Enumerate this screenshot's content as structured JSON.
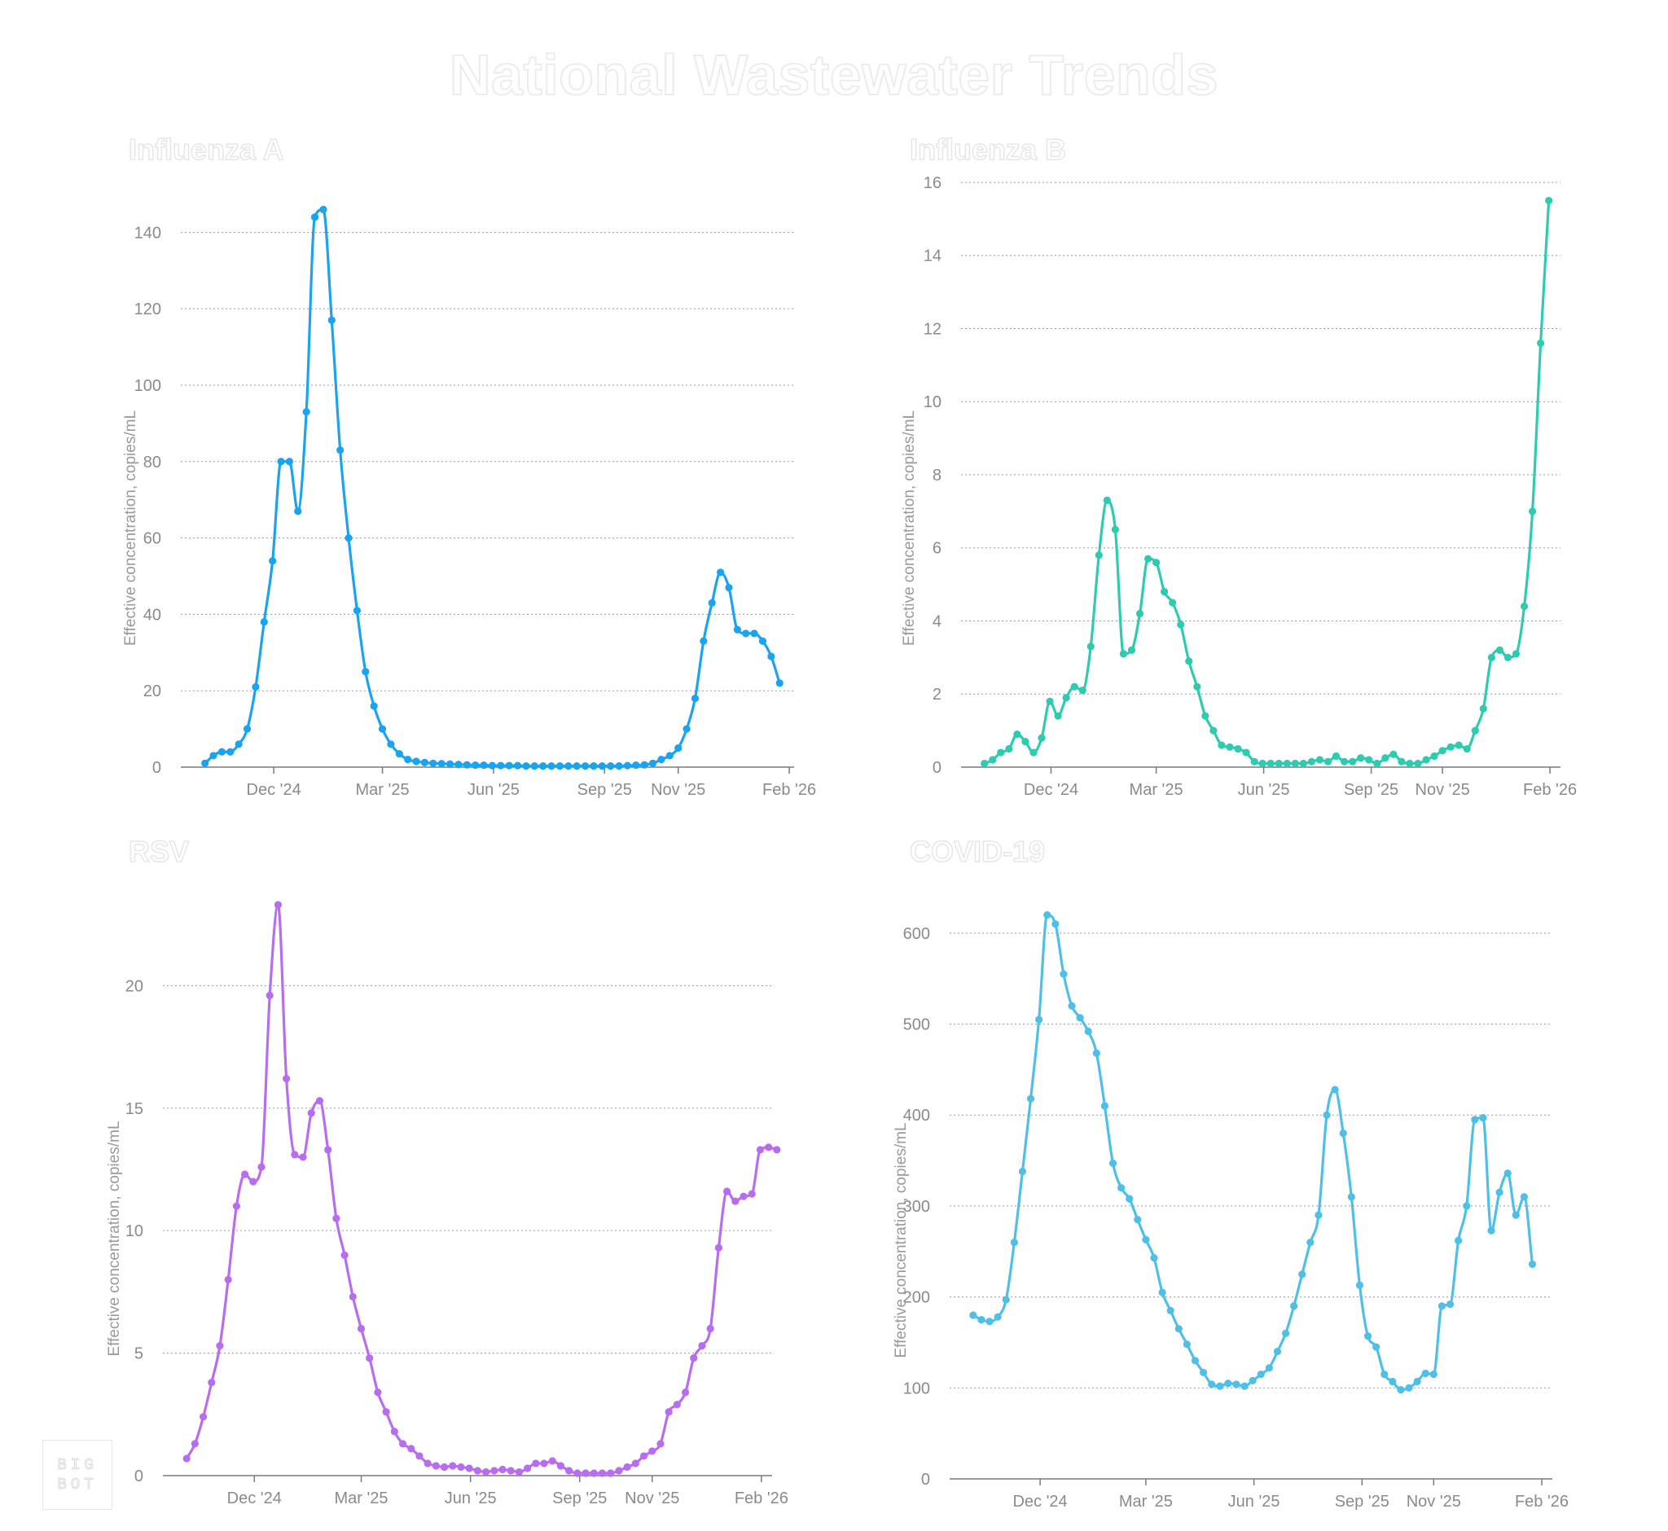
{
  "title": "National Wastewater Trends",
  "logo": {
    "line1": "BIG",
    "line2": "BOT"
  },
  "chart_data": [
    {
      "type": "line",
      "title": "Influenza A",
      "ylabel": "Effective concentration, copies/mL",
      "xlabel": "",
      "color": "#1aa3ee",
      "ylim": [
        0,
        155
      ],
      "yticks": [
        0,
        20,
        40,
        60,
        80,
        100,
        120,
        140
      ],
      "xlim": [
        "2024-09-15",
        "2026-02-05"
      ],
      "xticks": [
        {
          "date": "2024-12-01",
          "label": "Dec '24"
        },
        {
          "date": "2025-03-01",
          "label": "Mar '25"
        },
        {
          "date": "2025-06-01",
          "label": "Jun '25"
        },
        {
          "date": "2025-09-01",
          "label": "Sep '25"
        },
        {
          "date": "2025-11-01",
          "label": "Nov '25"
        },
        {
          "date": "2026-02-01",
          "label": "Feb '26"
        }
      ],
      "start": "2024-10-05",
      "step_days": 7,
      "values": [
        1,
        3,
        4,
        4,
        6,
        10,
        21,
        38,
        54,
        80,
        80,
        67,
        93,
        144,
        146,
        117,
        83,
        60,
        41,
        25,
        16,
        10,
        6,
        3.5,
        2,
        1.5,
        1.2,
        1,
        0.9,
        0.8,
        0.7,
        0.6,
        0.5,
        0.5,
        0.4,
        0.4,
        0.4,
        0.4,
        0.3,
        0.3,
        0.3,
        0.3,
        0.3,
        0.3,
        0.3,
        0.3,
        0.3,
        0.3,
        0.3,
        0.3,
        0.4,
        0.5,
        0.6,
        1,
        2,
        3,
        5,
        10,
        18,
        33,
        43,
        51,
        47,
        36,
        35,
        35,
        33,
        29,
        22
      ]
    },
    {
      "type": "line",
      "title": "Influenza B",
      "ylabel": "Effective concentration, copies/mL",
      "xlabel": "",
      "color": "#2dcbb0",
      "ylim": [
        0,
        16.2
      ],
      "yticks": [
        0,
        2,
        4,
        6,
        8,
        10,
        12,
        14,
        16
      ],
      "xlim": [
        "2024-09-15",
        "2026-02-10"
      ],
      "xticks": [
        {
          "date": "2024-12-01",
          "label": "Dec '24"
        },
        {
          "date": "2025-03-01",
          "label": "Mar '25"
        },
        {
          "date": "2025-06-01",
          "label": "Jun '25"
        },
        {
          "date": "2025-09-01",
          "label": "Sep '25"
        },
        {
          "date": "2025-11-01",
          "label": "Nov '25"
        },
        {
          "date": "2026-02-01",
          "label": "Feb '26"
        }
      ],
      "start": "2024-10-05",
      "step_days": 7,
      "values": [
        0.1,
        0.2,
        0.4,
        0.5,
        0.9,
        0.7,
        0.4,
        0.8,
        1.8,
        1.4,
        1.9,
        2.2,
        2.1,
        3.3,
        5.8,
        7.3,
        6.5,
        3.1,
        3.2,
        4.2,
        5.7,
        5.6,
        4.8,
        4.5,
        3.9,
        2.9,
        2.2,
        1.4,
        1.0,
        0.6,
        0.55,
        0.5,
        0.4,
        0.15,
        0.1,
        0.1,
        0.1,
        0.1,
        0.1,
        0.1,
        0.15,
        0.2,
        0.15,
        0.3,
        0.15,
        0.15,
        0.25,
        0.2,
        0.1,
        0.25,
        0.35,
        0.15,
        0.1,
        0.1,
        0.2,
        0.3,
        0.45,
        0.55,
        0.6,
        0.5,
        1.0,
        1.6,
        3.0,
        3.2,
        3.0,
        3.1,
        4.4,
        7.0,
        11.6,
        15.5
      ]
    },
    {
      "type": "line",
      "title": "RSV",
      "ylabel": "Effective concentration, copies/mL",
      "xlabel": "",
      "color": "#b86cf0",
      "ylim": [
        0,
        24
      ],
      "yticks": [
        0,
        5,
        10,
        15,
        20
      ],
      "xlim": [
        "2024-09-15",
        "2026-02-10"
      ],
      "xticks": [
        {
          "date": "2024-12-01",
          "label": "Dec '24"
        },
        {
          "date": "2025-03-01",
          "label": "Mar '25"
        },
        {
          "date": "2025-06-01",
          "label": "Jun '25"
        },
        {
          "date": "2025-09-01",
          "label": "Sep '25"
        },
        {
          "date": "2025-11-01",
          "label": "Nov '25"
        },
        {
          "date": "2026-02-01",
          "label": "Feb '26"
        }
      ],
      "start": "2024-10-05",
      "step_days": 7,
      "values": [
        0.7,
        1.3,
        2.4,
        3.8,
        5.3,
        8.0,
        11.0,
        12.3,
        12.0,
        12.6,
        19.6,
        23.3,
        16.2,
        13.1,
        13.0,
        14.8,
        15.3,
        13.3,
        10.5,
        9.0,
        7.3,
        6.0,
        4.8,
        3.4,
        2.6,
        1.8,
        1.3,
        1.1,
        0.8,
        0.5,
        0.4,
        0.35,
        0.4,
        0.35,
        0.3,
        0.2,
        0.15,
        0.2,
        0.25,
        0.2,
        0.15,
        0.3,
        0.5,
        0.5,
        0.6,
        0.4,
        0.2,
        0.1,
        0.1,
        0.1,
        0.1,
        0.1,
        0.2,
        0.35,
        0.5,
        0.8,
        1.0,
        1.3,
        2.6,
        2.9,
        3.4,
        4.8,
        5.3,
        6.0,
        9.3,
        11.6,
        11.2,
        11.4,
        11.5,
        13.3,
        13.4,
        13.3
      ]
    },
    {
      "type": "line",
      "title": "COVID-19",
      "ylabel": "Effective concentration, copies/mL",
      "xlabel": "",
      "color": "#4ec0e8",
      "ylim": [
        0,
        650
      ],
      "yticks": [
        0,
        100,
        200,
        300,
        400,
        500,
        600
      ],
      "xlim": [
        "2024-09-15",
        "2026-02-10"
      ],
      "xticks": [
        {
          "date": "2024-12-01",
          "label": "Dec '24"
        },
        {
          "date": "2025-03-01",
          "label": "Mar '25"
        },
        {
          "date": "2025-06-01",
          "label": "Jun '25"
        },
        {
          "date": "2025-09-01",
          "label": "Sep '25"
        },
        {
          "date": "2025-11-01",
          "label": "Nov '25"
        },
        {
          "date": "2026-02-01",
          "label": "Feb '26"
        }
      ],
      "start": "2024-10-05",
      "step_days": 7,
      "values": [
        180,
        175,
        173,
        178,
        197,
        260,
        338,
        418,
        505,
        620,
        610,
        555,
        520,
        507,
        492,
        468,
        410,
        347,
        320,
        308,
        285,
        263,
        243,
        205,
        185,
        165,
        148,
        130,
        117,
        104,
        102,
        105,
        104,
        102,
        108,
        115,
        122,
        140,
        160,
        190,
        225,
        260,
        290,
        400,
        428,
        380,
        310,
        213,
        157,
        145,
        115,
        107,
        98,
        100,
        107,
        116,
        115,
        190,
        192,
        262,
        300,
        395,
        397,
        273,
        315,
        336,
        290,
        310,
        236
      ]
    }
  ]
}
